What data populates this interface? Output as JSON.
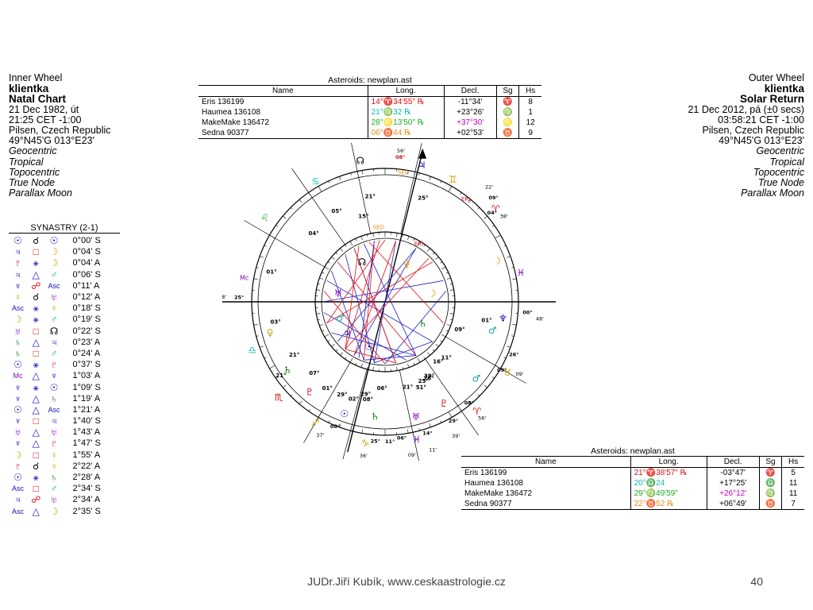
{
  "inner": {
    "title": "Inner Wheel",
    "name": "klientka",
    "chart_type": "Natal Chart",
    "date": "21 Dec 1982, út",
    "time": "21:25  CET -1:00",
    "place": "Pilsen, Czech Republic",
    "coords": "49°N45'G 013°E23'",
    "opts": [
      "Geocentric",
      "Tropical",
      "Topocentric",
      "True Node",
      "Parallax Moon"
    ]
  },
  "outer": {
    "title": "Outer Wheel",
    "name": "klientka",
    "chart_type": "Solar Return",
    "date": "21 Dec 2012, pá  (±0 secs)",
    "time": "03:58:21  CET -1:00",
    "place": "Pilsen, Czech Republic",
    "coords": "49°N45'G 013°E23'",
    "opts": [
      "Geocentric",
      "Tropical",
      "Topocentric",
      "True Node",
      "Parallax Moon"
    ]
  },
  "asteroids_top": {
    "caption": "Asteroids: newplan.ast",
    "headers": [
      "Name",
      "Long.",
      "Decl.",
      "Sg",
      "Hs"
    ],
    "rows": [
      {
        "name": "Eris 136199",
        "long": "14°♈34'55\" ℞",
        "decl": "-11°34'",
        "sg": "♈",
        "hs": "8",
        "color": "#e01010"
      },
      {
        "name": "Haumea 136108",
        "long": "21°♍32 ℞",
        "decl": "+23°26'",
        "sg": "♍",
        "hs": "1",
        "color": "#10b8b8"
      },
      {
        "name": "MakeMake 136472",
        "long": "28°♌13'50\" ℞",
        "decl": "+37°30'",
        "sg": "♌",
        "hs": "12",
        "color": "#20b020"
      },
      {
        "name": "Sedna 90377",
        "long": "06°♉44 ℞",
        "decl": "+02°53'",
        "sg": "♉",
        "hs": "9",
        "color": "#e09020"
      }
    ]
  },
  "asteroids_bottom": {
    "caption": "Asteroids: newplan.ast",
    "headers": [
      "Name",
      "Long.",
      "Decl.",
      "Sg",
      "Hs"
    ],
    "rows": [
      {
        "name": "Eris 136199",
        "long": "21°♈38'57\" ℞",
        "decl": "-03°47'",
        "sg": "♈",
        "hs": "5",
        "color": "#e01010"
      },
      {
        "name": "Haumea 136108",
        "long": "20°♎24",
        "decl": "+17°25'",
        "sg": "♎",
        "hs": "11",
        "color": "#10b8b8"
      },
      {
        "name": "MakeMake 136472",
        "long": "29°♍49'59\"",
        "decl": "+26°12'",
        "sg": "♍",
        "hs": "11",
        "color": "#20b020"
      },
      {
        "name": "Sedna 90377",
        "long": "22°♉52 ℞",
        "decl": "+06°49'",
        "sg": "♉",
        "hs": "7",
        "color": "#e09020"
      }
    ]
  },
  "synastry": {
    "title": "SYNASTRY (2-1)",
    "rows": [
      [
        "☉",
        "☌",
        "☉",
        "0°00' S"
      ],
      [
        "♃",
        "□",
        "☽",
        "0°04' S"
      ],
      [
        "♇",
        "⚹",
        "☽",
        "0°04' A"
      ],
      [
        "♃",
        "△",
        "♂",
        "0°06' S"
      ],
      [
        "♆",
        "☍",
        "Asc",
        "0°11' A"
      ],
      [
        "♀",
        "☌",
        "♅",
        "0°12' A"
      ],
      [
        "Asc",
        "⚹",
        "♀",
        "0°18' S"
      ],
      [
        "☽",
        "⚹",
        "♂",
        "0°19' S"
      ],
      [
        "♅",
        "□",
        "☊",
        "0°22' S"
      ],
      [
        "♄",
        "△",
        "♃",
        "0°23' A"
      ],
      [
        "♄",
        "□",
        "♂",
        "0°24' A"
      ],
      [
        "☉",
        "⚹",
        "♇",
        "0°37' S"
      ],
      [
        "Mc",
        "△",
        "♆",
        "1°03' A"
      ],
      [
        "♆",
        "⚹",
        "☉",
        "1°09' S"
      ],
      [
        "♆",
        "△",
        "♄",
        "1°19' A"
      ],
      [
        "☉",
        "△",
        "Asc",
        "1°21' A"
      ],
      [
        "♆",
        "□",
        "♃",
        "1°40' S"
      ],
      [
        "♅",
        "△",
        "♅",
        "1°43' A"
      ],
      [
        "♆",
        "△",
        "♇",
        "1°47' S"
      ],
      [
        "☽",
        "□",
        "♀",
        "1°55' A"
      ],
      [
        "♇",
        "☌",
        "♀",
        "2°22' A"
      ],
      [
        "☉",
        "⚹",
        "♄",
        "2°28' A"
      ],
      [
        "Asc",
        "□",
        "♂",
        "2°34' S"
      ],
      [
        "♃",
        "☍",
        "♅",
        "2°34' A"
      ],
      [
        "Asc",
        "△",
        "☽",
        "2°35' S"
      ]
    ]
  },
  "wheel_labels": {
    "inner_degrees": [
      "25°",
      "21°",
      "15°",
      "05°",
      "04°",
      "01°",
      "03°",
      "21°",
      "21°",
      "29°",
      "01°",
      "07°",
      "08°",
      "21°",
      "02°",
      "29°",
      "06°",
      "26°",
      "16°",
      "11°",
      "25°",
      "51°",
      "39°",
      "09°",
      "01°"
    ],
    "outer_degrees": [
      "56'",
      "08°",
      "48'",
      "25°",
      "09°",
      "38'",
      "22'",
      "04°",
      "00°",
      "48'",
      "09°",
      "08°",
      "37'",
      "11°",
      "25°",
      "36'",
      "06°",
      "09'",
      "14°",
      "11'",
      "29°",
      "39'",
      "08°",
      "56'",
      "26°",
      "09'"
    ],
    "asteroid_tags": [
      "SED",
      "ERI",
      "SED",
      "ERI"
    ]
  },
  "footer": "JUDr.Jiří Kubík, www.ceskaastrologie.cz",
  "page_number": "40"
}
